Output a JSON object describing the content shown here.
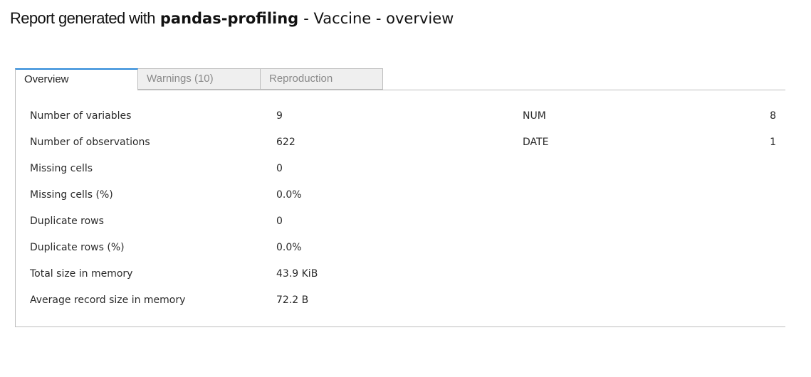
{
  "header": {
    "lead": "Report generated with",
    "brand": "pandas-profiling",
    "rest": "- Vaccine - overview"
  },
  "tabs": [
    {
      "label": "Overview",
      "active": true
    },
    {
      "label": "Warnings (10)",
      "active": false
    },
    {
      "label": "Reproduction",
      "active": false
    }
  ],
  "dataset_stats": [
    {
      "label": "Number of variables",
      "value": "9"
    },
    {
      "label": "Number of observations",
      "value": "622"
    },
    {
      "label": "Missing cells",
      "value": "0"
    },
    {
      "label": "Missing cells (%)",
      "value": "0.0%"
    },
    {
      "label": "Duplicate rows",
      "value": "0"
    },
    {
      "label": "Duplicate rows (%)",
      "value": "0.0%"
    },
    {
      "label": "Total size in memory",
      "value": "43.9 KiB"
    },
    {
      "label": "Average record size in memory",
      "value": "72.2 B"
    }
  ],
  "variable_types": [
    {
      "type": "NUM",
      "count": "8"
    },
    {
      "type": "DATE",
      "count": "1"
    }
  ],
  "colors": {
    "active_tab_accent": "#2b88d8",
    "inactive_tab_bg": "#efefef",
    "inactive_tab_text": "#8a8a8a",
    "border": "#bdbdbd"
  }
}
